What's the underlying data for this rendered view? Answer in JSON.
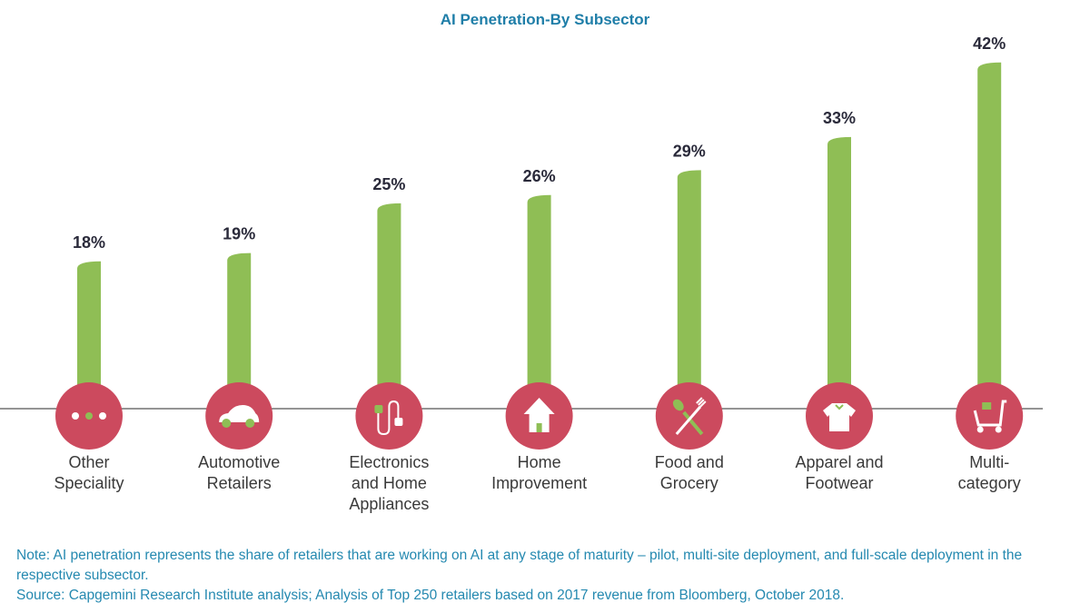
{
  "chart_data": {
    "type": "bar",
    "title": "AI Penetration-By Subsector",
    "categories": [
      "Other Speciality",
      "Automotive Retailers",
      "Electronics and Home Appliances",
      "Home Improvement",
      "Food and Grocery",
      "Apparel and Footwear",
      "Multi-category"
    ],
    "category_lines": [
      [
        "Other",
        "Speciality"
      ],
      [
        "Automotive",
        "Retailers"
      ],
      [
        "Electronics",
        "and Home",
        "Appliances"
      ],
      [
        "Home",
        "Improvement"
      ],
      [
        "Food and",
        "Grocery"
      ],
      [
        "Apparel and",
        "Footwear"
      ],
      [
        "Multi-",
        "category"
      ]
    ],
    "values": [
      18,
      19,
      25,
      26,
      29,
      33,
      42
    ],
    "data_labels": [
      "18%",
      "19%",
      "25%",
      "26%",
      "29%",
      "33%",
      "42%"
    ],
    "icons": [
      "dots-icon",
      "car-icon",
      "plug-icon",
      "house-icon",
      "spoon-fork-icon",
      "shirt-icon",
      "cart-icon"
    ],
    "colors": {
      "bar": "#8fbe55",
      "icon_circle": "#cc4a5e",
      "title": "#1f7ea8"
    },
    "ylim": [
      0,
      42
    ],
    "grid": false
  },
  "notes": {
    "note": "Note: AI penetration represents the share of retailers that are working on AI at any stage of maturity – pilot, multi-site deployment, and full-scale deployment in the respective subsector.",
    "source": "Source: Capgemini Research Institute analysis; Analysis of Top 250 retailers based on 2017 revenue from Bloomberg, October 2018."
  }
}
